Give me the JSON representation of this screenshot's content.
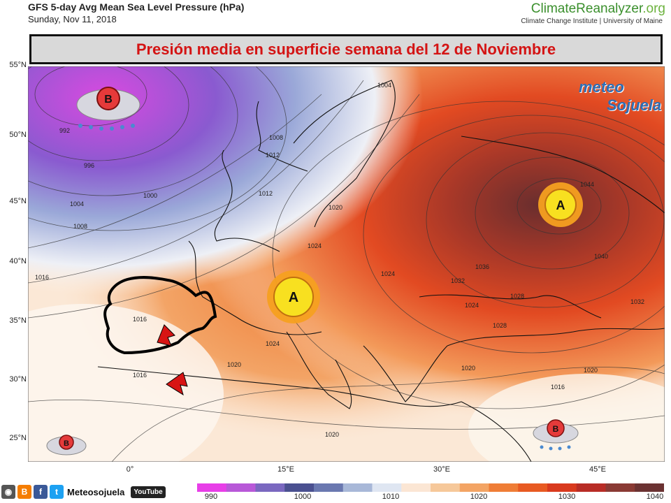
{
  "header": {
    "title": "GFS 5-day Avg Mean Sea Level Pressure (hPa)",
    "date": "Sunday, Nov 11, 2018",
    "brand_main": "ClimateReanalyzer",
    "brand_tld": ".org",
    "brand_sub": "Climate Change Institute | University of Maine"
  },
  "banner": {
    "text": "Presión media en superficie semana del 12 de Noviembre"
  },
  "watermark": {
    "part1": "meteo",
    "part2": "Sojuela"
  },
  "map": {
    "lat_labels": [
      "55°N",
      "50°N",
      "45°N",
      "40°N",
      "35°N",
      "30°N",
      "25°N"
    ],
    "lon_labels": [
      "0°",
      "15°E",
      "30°E",
      "45°E"
    ],
    "isobar_labels": [
      "992",
      "996",
      "1000",
      "1004",
      "1008",
      "1012",
      "1016",
      "1016",
      "1020",
      "1024",
      "1024",
      "1028",
      "1032",
      "1036",
      "1040",
      "1044",
      "1012",
      "1008",
      "1004",
      "1020",
      "1024",
      "1020",
      "1020",
      "1016",
      "1020",
      "1028",
      "1024",
      "1032",
      "1016"
    ],
    "centers": [
      {
        "type": "low",
        "letter": "B"
      },
      {
        "type": "high",
        "letter": "A"
      },
      {
        "type": "high",
        "letter": "A"
      },
      {
        "type": "low",
        "letter": "B"
      },
      {
        "type": "low",
        "letter": "B"
      }
    ]
  },
  "colorbar": {
    "labels": [
      "990",
      "1000",
      "1010",
      "1020",
      "1030",
      "1040"
    ],
    "colors": [
      "#e83ee8",
      "#b858d8",
      "#7a68c0",
      "#4a5090",
      "#6a78b0",
      "#a8b8d8",
      "#dfe6f2",
      "#fbe6d4",
      "#f6c89a",
      "#f3a464",
      "#ef7d36",
      "#e85a22",
      "#d93a1e",
      "#b82c26",
      "#8a3a34",
      "#6b3232"
    ]
  },
  "footer": {
    "social_label": "Meteosojuela",
    "youtube_label": "YouTube",
    "icons": [
      "camera-icon",
      "blogger-icon",
      "facebook-icon",
      "twitter-icon"
    ]
  }
}
